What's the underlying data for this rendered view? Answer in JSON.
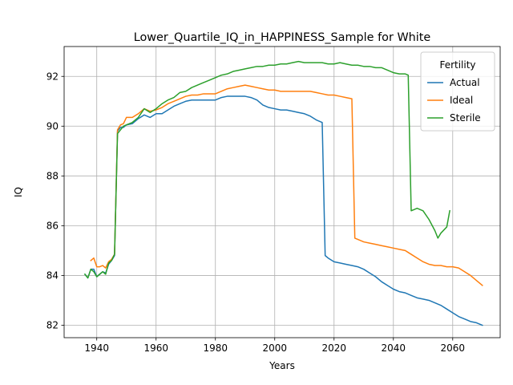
{
  "chart_data": {
    "type": "line",
    "title": "Lower_Quartile_IQ_in_HAPPINESS_Sample for White",
    "xlabel": "Years",
    "ylabel": "IQ",
    "xlim": [
      1929,
      2076
    ],
    "ylim": [
      81.5,
      93.2
    ],
    "xticks": [
      1940,
      1960,
      1980,
      2000,
      2020,
      2040,
      2060
    ],
    "yticks": [
      82,
      84,
      86,
      88,
      90,
      92
    ],
    "grid": true,
    "legend": {
      "title": "Fertility",
      "location": "top-right"
    },
    "series": [
      {
        "name": "Actual",
        "color": "#1f77b4",
        "x": [
          1936,
          1937,
          1938,
          1939,
          1940,
          1941,
          1942,
          1943,
          1944,
          1945,
          1946,
          1947,
          1948,
          1949,
          1950,
          1952,
          1954,
          1956,
          1958,
          1960,
          1962,
          1964,
          1966,
          1968,
          1970,
          1972,
          1974,
          1976,
          1978,
          1980,
          1982,
          1984,
          1986,
          1988,
          1990,
          1992,
          1994,
          1996,
          1998,
          2000,
          2002,
          2004,
          2006,
          2008,
          2010,
          2012,
          2014,
          2016,
          2017,
          2018,
          2020,
          2022,
          2024,
          2026,
          2028,
          2030,
          2032,
          2034,
          2036,
          2038,
          2040,
          2042,
          2044,
          2046,
          2048,
          2050,
          2052,
          2054,
          2056,
          2058,
          2060,
          2062,
          2064,
          2066,
          2068,
          2070
        ],
        "y": [
          84.05,
          83.9,
          84.25,
          84.25,
          83.95,
          84.05,
          84.15,
          84.1,
          84.45,
          84.6,
          84.8,
          89.8,
          89.95,
          89.95,
          90.05,
          90.1,
          90.3,
          90.45,
          90.35,
          90.5,
          90.5,
          90.65,
          90.8,
          90.9,
          91.0,
          91.05,
          91.05,
          91.05,
          91.05,
          91.05,
          91.15,
          91.2,
          91.2,
          91.2,
          91.2,
          91.15,
          91.05,
          90.85,
          90.75,
          90.7,
          90.65,
          90.65,
          90.6,
          90.55,
          90.5,
          90.4,
          90.25,
          90.15,
          84.8,
          84.7,
          84.55,
          84.5,
          84.45,
          84.4,
          84.35,
          84.25,
          84.1,
          83.95,
          83.75,
          83.6,
          83.45,
          83.35,
          83.3,
          83.2,
          83.1,
          83.05,
          83.0,
          82.9,
          82.8,
          82.65,
          82.5,
          82.35,
          82.25,
          82.15,
          82.1,
          82.0
        ]
      },
      {
        "name": "Ideal",
        "color": "#ff7f0e",
        "x": [
          1938,
          1939,
          1940,
          1941,
          1942,
          1943,
          1944,
          1945,
          1946,
          1947,
          1948,
          1949,
          1950,
          1952,
          1954,
          1956,
          1958,
          1960,
          1962,
          1964,
          1966,
          1968,
          1970,
          1972,
          1974,
          1976,
          1978,
          1980,
          1982,
          1984,
          1986,
          1988,
          1990,
          1992,
          1994,
          1996,
          1998,
          2000,
          2002,
          2004,
          2006,
          2008,
          2010,
          2012,
          2014,
          2016,
          2018,
          2020,
          2022,
          2024,
          2026,
          2027,
          2028,
          2030,
          2032,
          2034,
          2036,
          2038,
          2040,
          2042,
          2044,
          2046,
          2048,
          2050,
          2052,
          2054,
          2056,
          2058,
          2060,
          2062,
          2064,
          2066,
          2068,
          2070
        ],
        "y": [
          84.6,
          84.7,
          84.35,
          84.35,
          84.4,
          84.3,
          84.55,
          84.65,
          84.85,
          89.85,
          90.05,
          90.1,
          90.35,
          90.35,
          90.5,
          90.7,
          90.6,
          90.65,
          90.75,
          90.9,
          91.0,
          91.1,
          91.2,
          91.25,
          91.25,
          91.3,
          91.3,
          91.3,
          91.4,
          91.5,
          91.55,
          91.6,
          91.65,
          91.6,
          91.55,
          91.5,
          91.45,
          91.45,
          91.4,
          91.4,
          91.4,
          91.4,
          91.4,
          91.4,
          91.35,
          91.3,
          91.25,
          91.25,
          91.2,
          91.15,
          91.1,
          85.5,
          85.45,
          85.35,
          85.3,
          85.25,
          85.2,
          85.15,
          85.1,
          85.05,
          85.0,
          84.85,
          84.7,
          84.55,
          84.45,
          84.4,
          84.4,
          84.35,
          84.35,
          84.3,
          84.15,
          84.0,
          83.8,
          83.6
        ]
      },
      {
        "name": "Sterile",
        "color": "#2ca02c",
        "x": [
          1936,
          1937,
          1938,
          1939,
          1940,
          1941,
          1942,
          1943,
          1944,
          1945,
          1946,
          1947,
          1948,
          1949,
          1950,
          1952,
          1954,
          1956,
          1958,
          1960,
          1962,
          1964,
          1966,
          1968,
          1970,
          1972,
          1974,
          1976,
          1978,
          1980,
          1982,
          1984,
          1986,
          1988,
          1990,
          1992,
          1994,
          1996,
          1998,
          2000,
          2002,
          2004,
          2006,
          2008,
          2010,
          2012,
          2014,
          2016,
          2018,
          2020,
          2022,
          2024,
          2026,
          2028,
          2030,
          2032,
          2034,
          2036,
          2038,
          2040,
          2042,
          2044,
          2045,
          2046,
          2048,
          2050,
          2052,
          2054,
          2055,
          2056,
          2058,
          2059
        ],
        "y": [
          84.05,
          83.9,
          84.25,
          84.15,
          83.95,
          84.05,
          84.15,
          84.05,
          84.5,
          84.6,
          84.85,
          89.7,
          89.85,
          90.0,
          90.05,
          90.15,
          90.35,
          90.7,
          90.55,
          90.7,
          90.9,
          91.05,
          91.15,
          91.35,
          91.4,
          91.55,
          91.65,
          91.75,
          91.85,
          91.95,
          92.05,
          92.1,
          92.2,
          92.25,
          92.3,
          92.35,
          92.4,
          92.4,
          92.45,
          92.45,
          92.5,
          92.5,
          92.55,
          92.6,
          92.55,
          92.55,
          92.55,
          92.55,
          92.5,
          92.5,
          92.55,
          92.5,
          92.45,
          92.45,
          92.4,
          92.4,
          92.35,
          92.35,
          92.25,
          92.15,
          92.1,
          92.1,
          92.05,
          86.6,
          86.7,
          86.6,
          86.25,
          85.8,
          85.5,
          85.7,
          85.95,
          86.6
        ]
      }
    ]
  }
}
